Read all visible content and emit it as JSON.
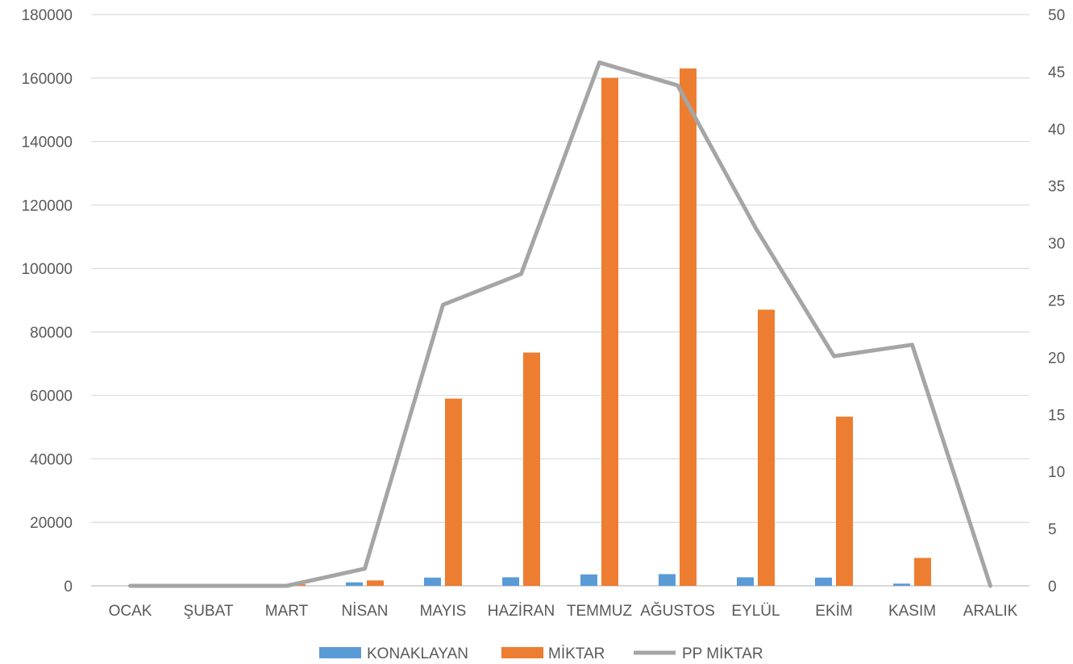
{
  "chart_data": {
    "type": "bar",
    "categories": [
      "OCAK",
      "ŞUBAT",
      "MART",
      "NİSAN",
      "MAYIS",
      "HAZİRAN",
      "TEMMUZ",
      "AĞUSTOS",
      "EYLÜL",
      "EKİM",
      "KASIM",
      "ARALIK"
    ],
    "series": [
      {
        "name": "KONAKLAYAN",
        "type": "bar",
        "axis": "left",
        "color": "#5B9BD5",
        "values": [
          0,
          0,
          0,
          1100,
          2600,
          2700,
          3600,
          3700,
          2700,
          2600,
          700,
          0
        ]
      },
      {
        "name": "MİKTAR",
        "type": "bar",
        "axis": "left",
        "color": "#ED7D31",
        "values": [
          0,
          0,
          500,
          1700,
          59000,
          73500,
          160000,
          163000,
          87000,
          53300,
          8800,
          0
        ]
      },
      {
        "name": "PP MİKTAR",
        "type": "line",
        "axis": "right",
        "color": "#A5A5A5",
        "values": [
          0,
          0,
          0,
          1.5,
          24.6,
          27.3,
          45.8,
          43.8,
          31.3,
          20.1,
          21.1,
          0
        ]
      }
    ],
    "left_axis": {
      "min": 0,
      "max": 180000,
      "step": 20000,
      "ticks": [
        "0",
        "20000",
        "40000",
        "60000",
        "80000",
        "100000",
        "120000",
        "140000",
        "160000",
        "180000"
      ]
    },
    "right_axis": {
      "min": 0,
      "max": 50,
      "step": 5,
      "ticks": [
        "0",
        "5",
        "10",
        "15",
        "20",
        "25",
        "30",
        "35",
        "40",
        "45",
        "50"
      ]
    },
    "grid": true,
    "legend_position": "bottom"
  }
}
